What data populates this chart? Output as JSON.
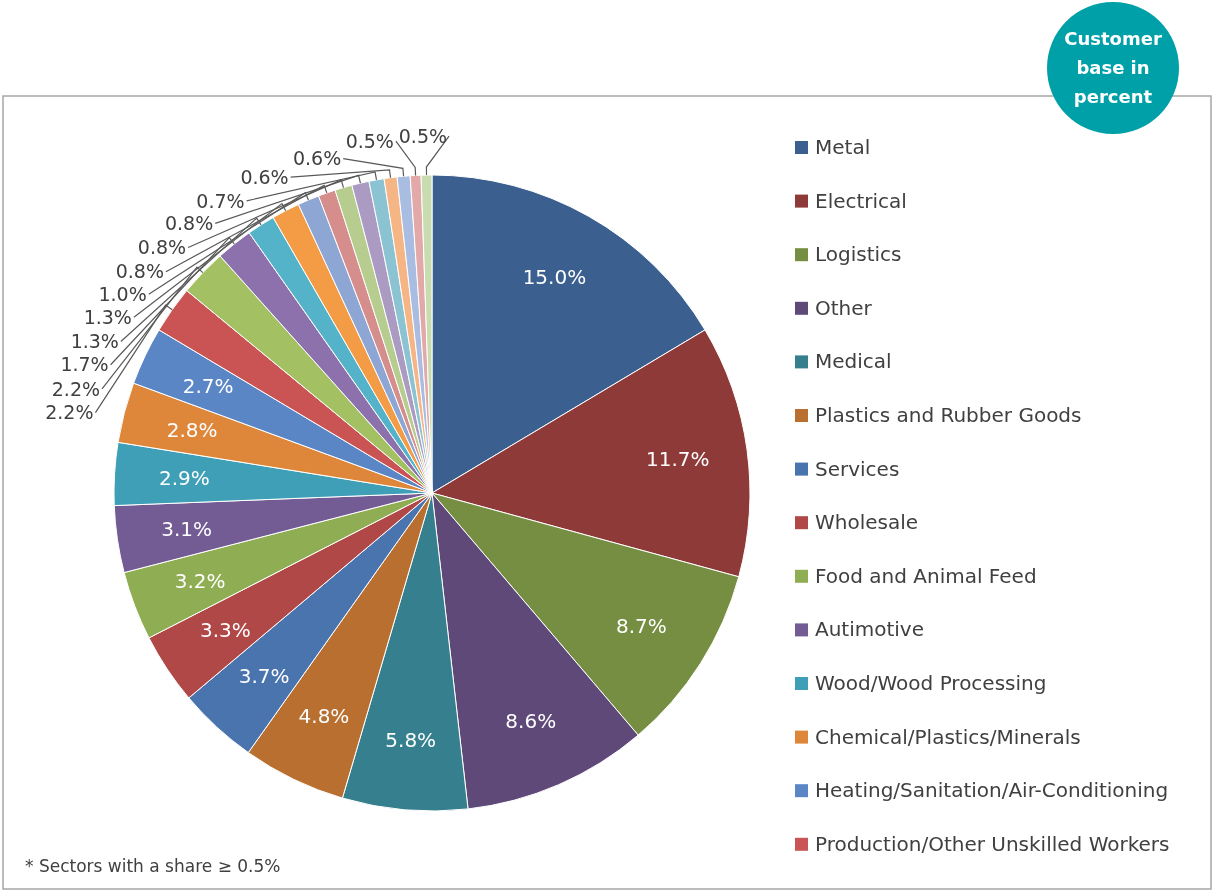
{
  "chart_data": {
    "type": "pie",
    "title": "Customer base in percent",
    "categories": [
      "Metal",
      "Electrical",
      "Logistics",
      "Other",
      "Medical",
      "Plastics and Rubber Goods",
      "Services",
      "Wholesale",
      "Food and Animal Feed",
      "Autimotive",
      "Wood/Wood Processing",
      "Chemical/Plastics/Minerals",
      "Heating/Sanitation/Air-Conditioning",
      "Production/Other Unskilled Workers",
      null,
      null,
      null,
      null,
      null,
      null,
      null,
      null,
      null,
      null,
      null,
      null,
      null
    ],
    "values": [
      15.0,
      11.7,
      8.7,
      8.6,
      5.8,
      4.8,
      3.7,
      3.3,
      3.2,
      3.1,
      2.9,
      2.8,
      2.7,
      2.2,
      2.2,
      1.7,
      1.3,
      1.3,
      1.0,
      0.8,
      0.8,
      0.8,
      0.7,
      0.6,
      0.6,
      0.5,
      0.5
    ],
    "value_labels": [
      "15.0%",
      "11.7%",
      "8.7%",
      "8.6%",
      "5.8%",
      "4.8%",
      "3.7%",
      "3.3%",
      "3.2%",
      "3.1%",
      "2.9%",
      "2.8%",
      "2.7%",
      "2.2%",
      "2.2%",
      "1.7%",
      "1.3%",
      "1.3%",
      "1.0%",
      "0.8%",
      "0.8%",
      "0.8%",
      "0.7%",
      "0.6%",
      "0.6%",
      "0.5%",
      "0.5%"
    ],
    "colors": [
      "#3b5f8e",
      "#8e3a39",
      "#768e42",
      "#5f4979",
      "#367f8f",
      "#b86f30",
      "#4a74ae",
      "#b04847",
      "#8fad52",
      "#735b94",
      "#3e9fb6",
      "#de873a",
      "#5b86c6",
      "#c95453",
      "#a3c163",
      "#8c71ad",
      "#54b3c9",
      "#f39b45",
      "#8ea6d4",
      "#d68e8d",
      "#b7cd8f",
      "#ab9ac2",
      "#8bc3d2",
      "#f6b585",
      "#a9bde2",
      "#e3a9a8",
      "#c9dcb0"
    ],
    "legend": "right",
    "annotations": [
      "* Sectors with a share ≥ 0.5%"
    ]
  }
}
